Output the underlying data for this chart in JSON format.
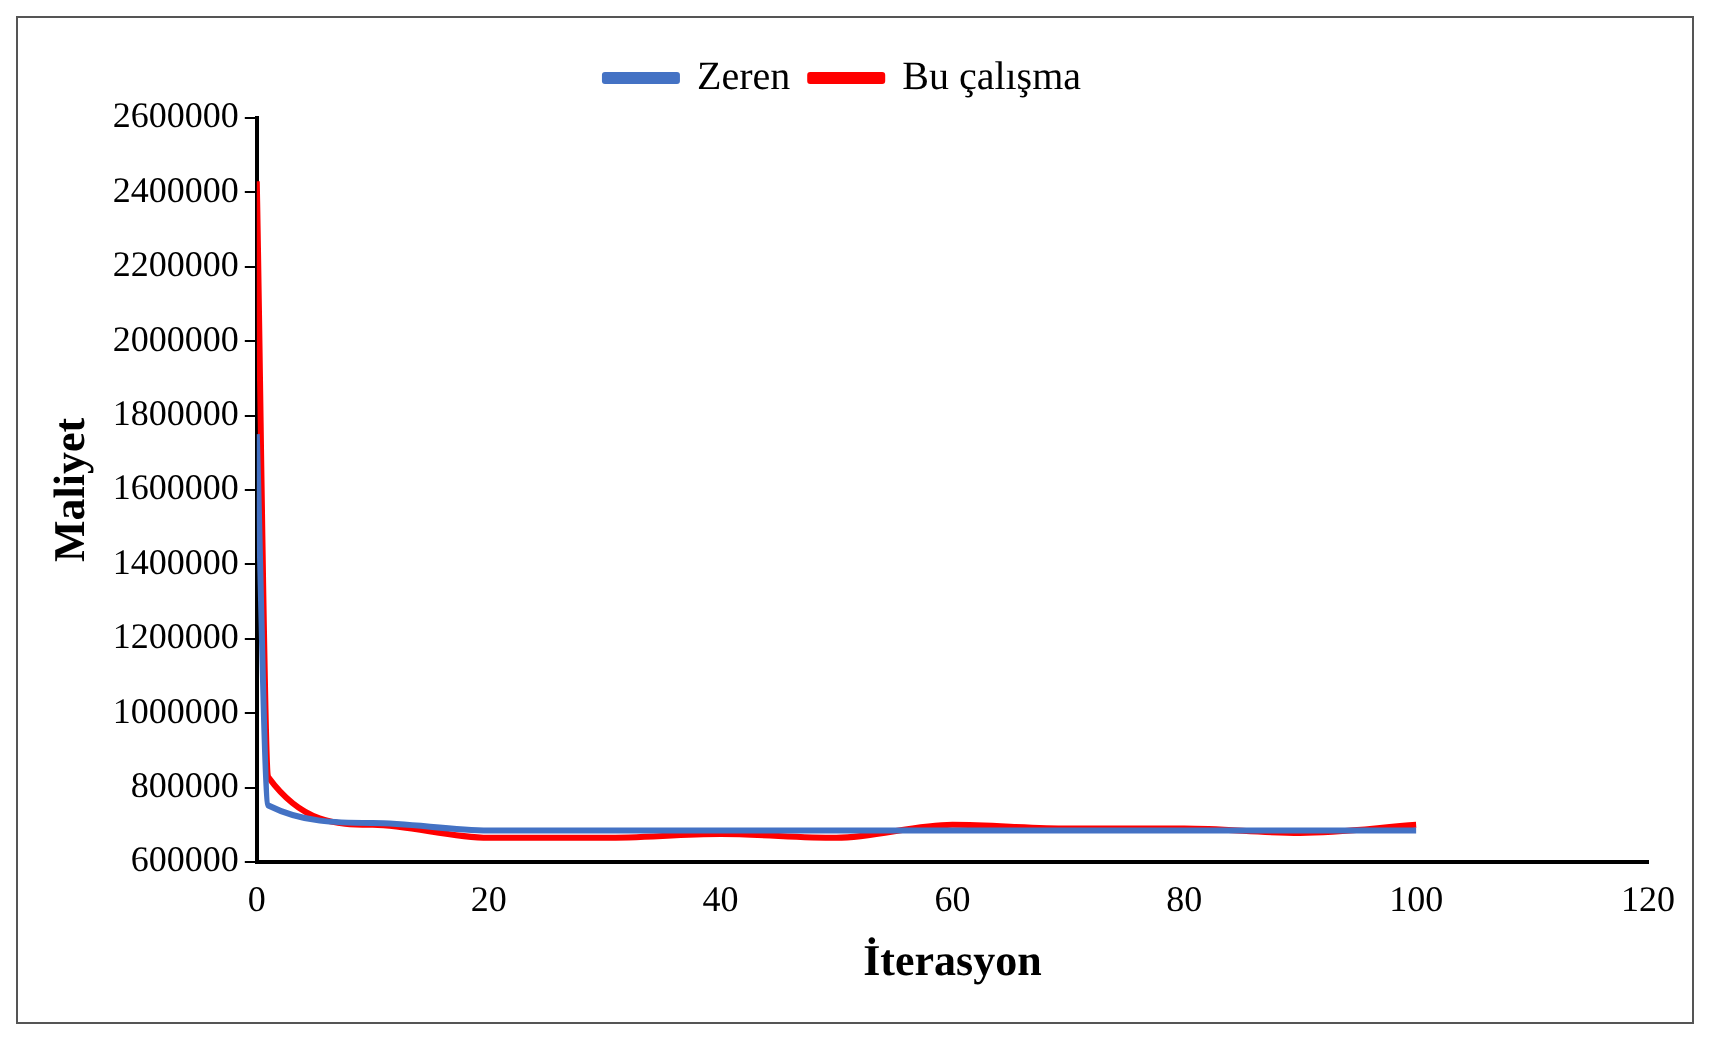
{
  "chart_data": {
    "type": "line",
    "xlabel": "İterasyon",
    "ylabel": "Maliyet",
    "x": [
      0,
      1,
      10,
      20,
      30,
      40,
      50,
      60,
      70,
      80,
      90,
      100
    ],
    "series": [
      {
        "name": "Zeren",
        "color": "#4472c4",
        "values": [
          1750000,
          752000,
          705000,
          685000,
          685000,
          685000,
          685000,
          685000,
          685000,
          685000,
          685000,
          685000
        ]
      },
      {
        "name": "Bu çalışma",
        "color": "#ff0000",
        "values": [
          2430000,
          828000,
          700000,
          665000,
          665000,
          675000,
          665000,
          700000,
          690000,
          690000,
          678000,
          700000
        ]
      }
    ],
    "xlim": [
      0,
      120
    ],
    "xticks": [
      0,
      20,
      40,
      60,
      80,
      100,
      120
    ],
    "ylim": [
      600000,
      2600000
    ],
    "yticks": [
      600000,
      800000,
      1000000,
      1200000,
      1400000,
      1600000,
      1800000,
      2000000,
      2200000,
      2400000,
      2600000
    ],
    "grid": false,
    "legend": "top",
    "marker": "none",
    "line_style": "solid"
  }
}
